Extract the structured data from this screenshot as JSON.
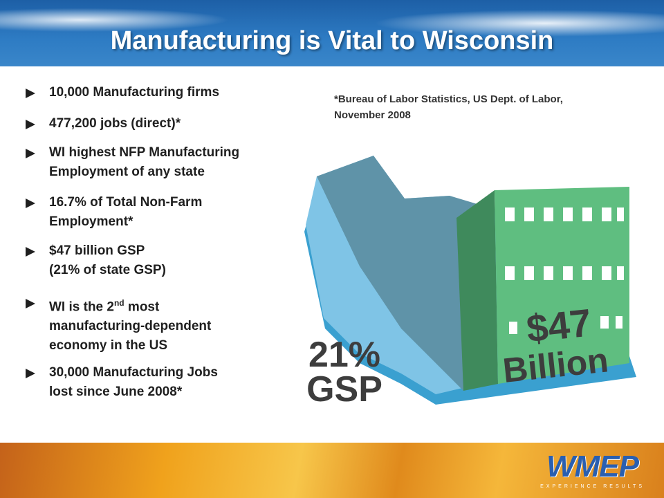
{
  "header": {
    "title": "Manufacturing is Vital to Wisconsin"
  },
  "bullets": [
    {
      "lines": [
        "10,000 Manufacturing firms"
      ]
    },
    {
      "lines": [
        "477,200 jobs (direct)*"
      ]
    },
    {
      "lines": [
        "WI highest NFP Manufacturing",
        "Employment of any state"
      ]
    },
    {
      "lines": [
        "16.7% of Total Non-Farm",
        "Employment*"
      ]
    },
    {
      "lines": [
        "$47 billion GSP",
        "(21% of state GSP)"
      ]
    },
    {
      "lines": [
        {
          "text": "WI is the 2",
          "sup": "nd",
          "after": " most"
        },
        "manufacturing-dependent",
        "economy in the US"
      ]
    },
    {
      "lines": [
        "30,000 Manufacturing Jobs",
        "lost since June 2008*"
      ]
    }
  ],
  "footnote": [
    "*Bureau of Labor Statistics, US Dept. of Labor,",
    "November 2008"
  ],
  "graphic": {
    "share": "21%",
    "share_label": "GSP",
    "amount": "$47",
    "amount_label": "Billion"
  },
  "logo": {
    "name": "WMEP",
    "tagline": "EXPERIENCE RESULTS"
  }
}
